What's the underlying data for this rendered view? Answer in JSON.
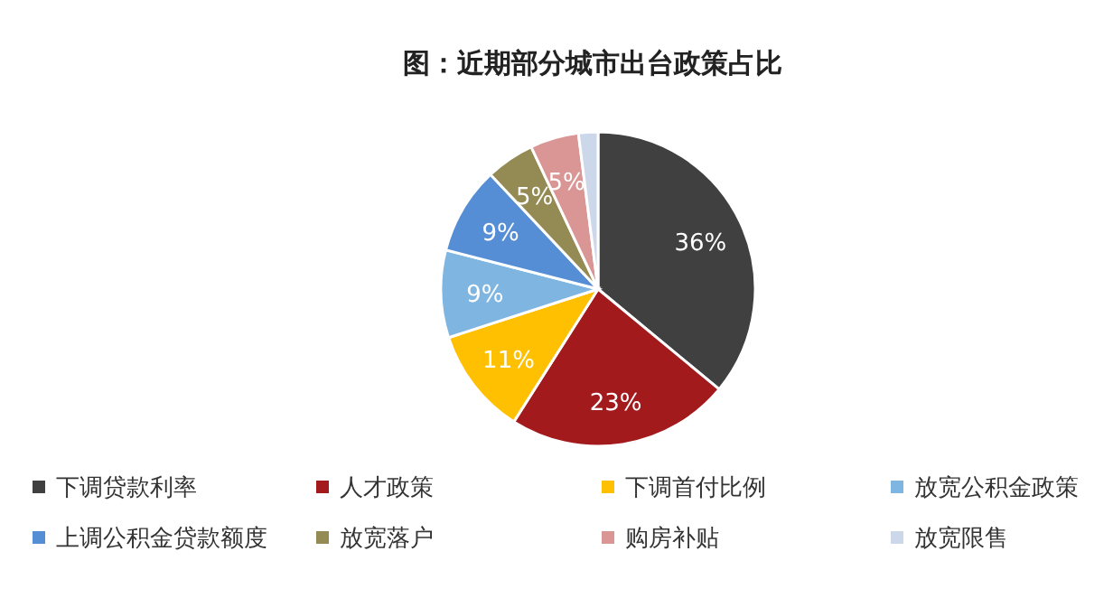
{
  "chart_data": {
    "type": "pie",
    "title": "图：近期部分城市出台政策占比",
    "categories": [
      "下调贷款利率",
      "人才政策",
      "下调首付比例",
      "放宽公积金政策",
      "上调公积金贷款额度",
      "放宽落户",
      "购房补贴",
      "放宽限售"
    ],
    "values": [
      36,
      23,
      11,
      9,
      9,
      5,
      5,
      2
    ],
    "value_labels": [
      "36%",
      "23%",
      "11%",
      "9%",
      "9%",
      "5%",
      "5%",
      null
    ],
    "colors": [
      "#404040",
      "#a31a1d",
      "#fec000",
      "#7fb5e1",
      "#558ed5",
      "#948a54",
      "#d99694",
      "#ccd8ea"
    ],
    "legend": "bottom"
  }
}
